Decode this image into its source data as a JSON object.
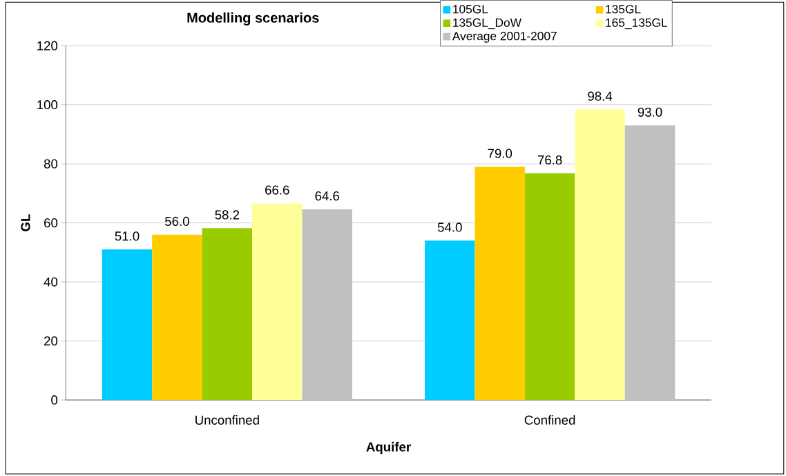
{
  "chart_data": {
    "type": "bar",
    "title": "Modelling scenarios",
    "xlabel": "Aquifer",
    "ylabel": "GL",
    "categories": [
      "Unconfined",
      "Confined"
    ],
    "series": [
      {
        "name": "105GL",
        "color": "#00ccff",
        "values": [
          51.0,
          54.0
        ],
        "value_labels": [
          "51.0",
          "54.0"
        ]
      },
      {
        "name": "135GL",
        "color": "#ffcc00",
        "values": [
          56.0,
          79.0
        ],
        "value_labels": [
          "56.0",
          "79.0"
        ]
      },
      {
        "name": "135GL_DoW",
        "color": "#99cc00",
        "values": [
          58.2,
          76.8
        ],
        "value_labels": [
          "58.2",
          "76.8"
        ]
      },
      {
        "name": "165_135GL",
        "color": "#ffff99",
        "values": [
          66.6,
          98.4
        ],
        "value_labels": [
          "66.6",
          "98.4"
        ]
      },
      {
        "name": "Average 2001-2007",
        "color": "#c0c0c0",
        "values": [
          64.6,
          93.0
        ],
        "value_labels": [
          "64.6",
          "93.0"
        ]
      }
    ],
    "ylim": [
      0,
      120
    ],
    "yticks": [
      0,
      20,
      40,
      60,
      80,
      100,
      120
    ],
    "grid": "y",
    "legend": "top right"
  }
}
